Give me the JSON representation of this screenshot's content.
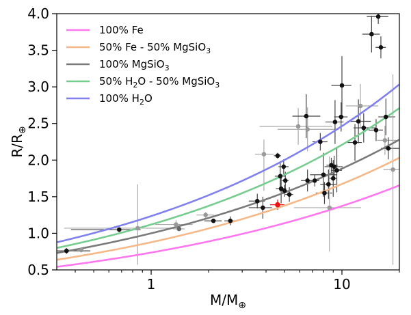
{
  "chart_data": {
    "type": "scatter",
    "xlabel": {
      "base": "M/M",
      "sub": "⊕"
    },
    "ylabel": {
      "base": "R/R",
      "sub": "⊕"
    },
    "xscale": "log",
    "xlim": [
      0.32,
      20
    ],
    "ylim": [
      0.5,
      4.0
    ],
    "xticks": [
      1,
      10
    ],
    "xtick_labels": [
      "1",
      "10"
    ],
    "yticks": [
      0.5,
      1.0,
      1.5,
      2.0,
      2.5,
      3.0,
      3.5,
      4.0
    ],
    "ytick_labels": [
      "0.5",
      "1.0",
      "1.5",
      "2.0",
      "2.5",
      "3.0",
      "3.5",
      "4.0"
    ],
    "grid": false,
    "legend_position": "top-left",
    "series": [
      {
        "name": "100% Fe",
        "label_parts": [
          [
            "100% Fe",
            false
          ]
        ],
        "color": "#ff77ee",
        "k": 0.737,
        "p": 0.27
      },
      {
        "name": "50% Fe - 50% MgSiO3",
        "label_parts": [
          [
            "50% Fe - 50% MgSiO",
            false
          ],
          [
            "3",
            true
          ]
        ],
        "color": "#f5b888",
        "k": 0.878,
        "p": 0.28
      },
      {
        "name": "100% MgSiO3",
        "label_parts": [
          [
            "100% MgSiO",
            false
          ],
          [
            "3",
            true
          ]
        ],
        "color": "#7a7a7a",
        "k": 1.0,
        "p": 0.275
      },
      {
        "name": "50% H2O - 50% MgSiO3",
        "label_parts": [
          [
            "50% H",
            false
          ],
          [
            "2",
            true
          ],
          [
            "O - 50% MgSiO",
            false
          ],
          [
            "3",
            true
          ]
        ],
        "color": "#77cc90",
        "k": 1.12,
        "p": 0.295
      },
      {
        "name": "100% H2O",
        "label_parts": [
          [
            "100% H",
            false
          ],
          [
            "2",
            true
          ],
          [
            "O",
            false
          ]
        ],
        "color": "#8080ee",
        "k": 1.235,
        "p": 0.3
      }
    ],
    "points": [
      {
        "x": 0.36,
        "y": 0.76,
        "xerr": [
          0.05,
          0.12
        ],
        "yerr": [
          0.04,
          0.04
        ],
        "color": "#111111"
      },
      {
        "x": 0.43,
        "y": 0.77,
        "xerr": [
          0.0,
          0.0
        ],
        "yerr": [
          0.0,
          0.0
        ],
        "color": "#999999"
      },
      {
        "x": 0.68,
        "y": 1.05,
        "xerr": [
          0.3,
          0.2
        ],
        "yerr": [
          0.03,
          0.03
        ],
        "color": "#111111"
      },
      {
        "x": 0.85,
        "y": 1.07,
        "xerr": [
          0.5,
          0.4
        ],
        "yerr": [
          0.5,
          0.6
        ],
        "color": "#999999"
      },
      {
        "x": 1.35,
        "y": 1.12,
        "xerr": [
          0.3,
          0.3
        ],
        "yerr": [
          0.06,
          0.06
        ],
        "color": "#999999"
      },
      {
        "x": 1.4,
        "y": 1.06,
        "xerr": [
          0.1,
          0.1
        ],
        "yerr": [
          0.03,
          0.03
        ],
        "color": "#666666"
      },
      {
        "x": 1.93,
        "y": 1.25,
        "xerr": [
          0.2,
          0.2
        ],
        "yerr": [
          0.04,
          0.04
        ],
        "color": "#999999"
      },
      {
        "x": 2.12,
        "y": 1.17,
        "xerr": [
          0.22,
          0.22
        ],
        "yerr": [
          0.02,
          0.02
        ],
        "color": "#111111"
      },
      {
        "x": 2.6,
        "y": 1.17,
        "xerr": [
          0.18,
          0.14
        ],
        "yerr": [
          0.06,
          0.06
        ],
        "color": "#111111"
      },
      {
        "x": 3.6,
        "y": 1.44,
        "xerr": [
          0.35,
          0.35
        ],
        "yerr": [
          0.1,
          0.1
        ],
        "color": "#111111"
      },
      {
        "x": 3.85,
        "y": 1.35,
        "xerr": [
          0.6,
          0.45
        ],
        "yerr": [
          0.15,
          0.15
        ],
        "color": "#111111"
      },
      {
        "x": 3.9,
        "y": 2.08,
        "xerr": [
          0.4,
          0.5
        ],
        "yerr": [
          0.5,
          0.2
        ],
        "color": "#999999"
      },
      {
        "x": 4.6,
        "y": 1.39,
        "xerr": [
          0.4,
          0.4
        ],
        "yerr": [
          0.07,
          0.07
        ],
        "color": "#ee1111"
      },
      {
        "x": 4.6,
        "y": 2.06,
        "xerr": [
          0.2,
          0.2
        ],
        "yerr": [
          0.04,
          0.04
        ],
        "color": "#111111"
      },
      {
        "x": 4.75,
        "y": 1.78,
        "xerr": [
          0.3,
          0.3
        ],
        "yerr": [
          0.2,
          0.2
        ],
        "color": "#111111"
      },
      {
        "x": 4.8,
        "y": 1.61,
        "xerr": [
          0.3,
          0.3
        ],
        "yerr": [
          0.2,
          0.2
        ],
        "color": "#111111"
      },
      {
        "x": 4.95,
        "y": 1.91,
        "xerr": [
          0.3,
          0.3
        ],
        "yerr": [
          0.1,
          0.1
        ],
        "color": "#111111"
      },
      {
        "x": 5.0,
        "y": 1.58,
        "xerr": [
          0.3,
          0.3
        ],
        "yerr": [
          0.08,
          0.08
        ],
        "color": "#111111"
      },
      {
        "x": 5.05,
        "y": 1.72,
        "xerr": [
          0.2,
          0.2
        ],
        "yerr": [
          0.12,
          0.12
        ],
        "color": "#111111"
      },
      {
        "x": 5.3,
        "y": 1.53,
        "xerr": [
          0.25,
          0.25
        ],
        "yerr": [
          0.1,
          0.1
        ],
        "color": "#111111"
      },
      {
        "x": 5.9,
        "y": 2.46,
        "xerr": [
          2.2,
          3.0
        ],
        "yerr": [
          0.25,
          0.25
        ],
        "color": "#999999"
      },
      {
        "x": 6.5,
        "y": 2.6,
        "xerr": [
          1.0,
          1.2
        ],
        "yerr": [
          0.3,
          0.3
        ],
        "color": "#111111"
      },
      {
        "x": 6.6,
        "y": 1.72,
        "xerr": [
          0.5,
          0.5
        ],
        "yerr": [
          0.15,
          0.15
        ],
        "color": "#111111"
      },
      {
        "x": 6.6,
        "y": 2.42,
        "xerr": [
          2.0,
          3.0
        ],
        "yerr": [
          0.3,
          0.3
        ],
        "color": "#999999"
      },
      {
        "x": 7.2,
        "y": 1.72,
        "xerr": [
          0.4,
          0.4
        ],
        "yerr": [
          0.08,
          0.08
        ],
        "color": "#111111"
      },
      {
        "x": 7.7,
        "y": 2.25,
        "xerr": [
          0.7,
          0.7
        ],
        "yerr": [
          0.12,
          0.12
        ],
        "color": "#111111"
      },
      {
        "x": 8.0,
        "y": 1.8,
        "xerr": [
          1.2,
          1.4
        ],
        "yerr": [
          0.3,
          0.3
        ],
        "color": "#111111"
      },
      {
        "x": 8.1,
        "y": 1.55,
        "xerr": [
          0.8,
          0.8
        ],
        "yerr": [
          0.15,
          0.15
        ],
        "color": "#111111"
      },
      {
        "x": 8.5,
        "y": 1.67,
        "xerr": [
          0.8,
          0.8
        ],
        "yerr": [
          0.2,
          0.2
        ],
        "color": "#111111"
      },
      {
        "x": 8.6,
        "y": 1.35,
        "xerr": [
          3.0,
          4.0
        ],
        "yerr": [
          0.6,
          0.7
        ],
        "color": "#999999"
      },
      {
        "x": 8.8,
        "y": 1.93,
        "xerr": [
          0.5,
          0.7
        ],
        "yerr": [
          0.1,
          0.1
        ],
        "color": "#111111"
      },
      {
        "x": 9.0,
        "y": 1.75,
        "xerr": [
          0.4,
          0.4
        ],
        "yerr": [
          0.25,
          0.25
        ],
        "color": "#111111"
      },
      {
        "x": 9.1,
        "y": 1.91,
        "xerr": [
          1.0,
          1.0
        ],
        "yerr": [
          0.15,
          0.15
        ],
        "color": "#111111"
      },
      {
        "x": 9.2,
        "y": 2.52,
        "xerr": [
          1.0,
          1.0
        ],
        "yerr": [
          0.3,
          0.3
        ],
        "color": "#111111"
      },
      {
        "x": 9.4,
        "y": 1.86,
        "xerr": [
          0.6,
          0.6
        ],
        "yerr": [
          0.3,
          0.3
        ],
        "color": "#111111"
      },
      {
        "x": 9.9,
        "y": 2.59,
        "xerr": [
          0.8,
          0.8
        ],
        "yerr": [
          0.2,
          0.2
        ],
        "color": "#111111"
      },
      {
        "x": 10.0,
        "y": 3.02,
        "xerr": [
          1.2,
          1.2
        ],
        "yerr": [
          0.4,
          0.4
        ],
        "color": "#111111"
      },
      {
        "x": 11.7,
        "y": 2.24,
        "xerr": [
          1.0,
          1.0
        ],
        "yerr": [
          0.25,
          0.25
        ],
        "color": "#111111"
      },
      {
        "x": 12.2,
        "y": 2.53,
        "xerr": [
          1.5,
          2.0
        ],
        "yerr": [
          0.3,
          0.3
        ],
        "color": "#111111"
      },
      {
        "x": 12.5,
        "y": 2.74,
        "xerr": [
          2.0,
          3.0
        ],
        "yerr": [
          0.3,
          0.3
        ],
        "color": "#999999"
      },
      {
        "x": 13.0,
        "y": 2.44,
        "xerr": [
          1.5,
          2.0
        ],
        "yerr": [
          0.2,
          0.2
        ],
        "color": "#111111"
      },
      {
        "x": 14.3,
        "y": 3.72,
        "xerr": [
          1.5,
          1.5
        ],
        "yerr": [
          0.25,
          0.25
        ],
        "color": "#111111"
      },
      {
        "x": 15.1,
        "y": 2.41,
        "xerr": [
          1.3,
          1.3
        ],
        "yerr": [
          0.15,
          0.15
        ],
        "color": "#111111"
      },
      {
        "x": 15.5,
        "y": 3.96,
        "xerr": [
          2.0,
          2.0
        ],
        "yerr": [
          0.1,
          0.1
        ],
        "color": "#111111"
      },
      {
        "x": 16.0,
        "y": 3.54,
        "xerr": [
          1.0,
          1.0
        ],
        "yerr": [
          0.15,
          0.15
        ],
        "color": "#111111"
      },
      {
        "x": 16.8,
        "y": 2.27,
        "xerr": [
          1.5,
          2.5
        ],
        "yerr": [
          0.2,
          0.2
        ],
        "color": "#999999"
      },
      {
        "x": 17.0,
        "y": 2.59,
        "xerr": [
          1.5,
          2.0
        ],
        "yerr": [
          0.25,
          0.25
        ],
        "color": "#111111"
      },
      {
        "x": 17.5,
        "y": 2.16,
        "xerr": [
          1.5,
          2.5
        ],
        "yerr": [
          0.15,
          0.15
        ],
        "color": "#111111"
      },
      {
        "x": 18.5,
        "y": 1.87,
        "xerr": [
          2.0,
          2.0
        ],
        "yerr": [
          1.3,
          1.3
        ],
        "color": "#999999"
      }
    ]
  }
}
